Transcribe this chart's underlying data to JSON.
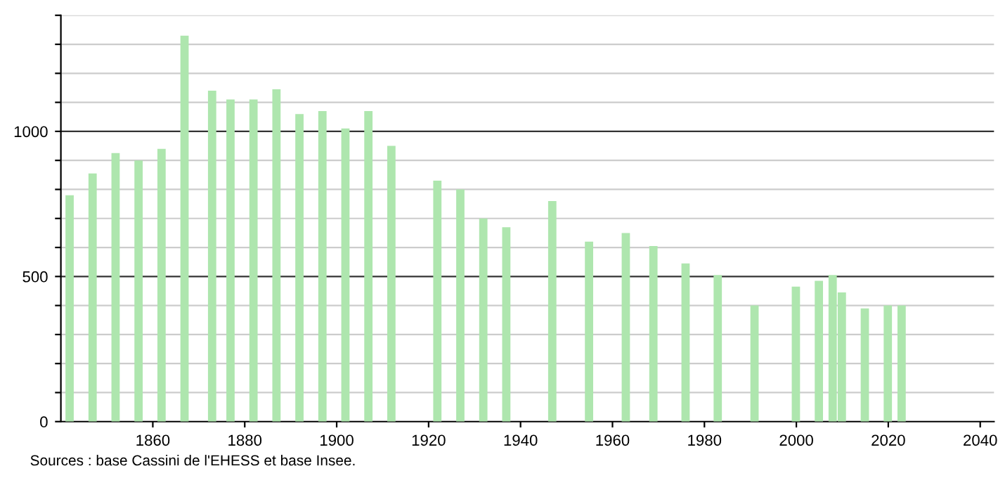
{
  "chart_data": {
    "type": "bar",
    "x": [
      1841,
      1846,
      1851,
      1856,
      1861,
      1866,
      1872,
      1876,
      1881,
      1886,
      1891,
      1896,
      1901,
      1906,
      1911,
      1921,
      1926,
      1931,
      1936,
      1946,
      1954,
      1962,
      1968,
      1975,
      1982,
      1990,
      1999,
      2004,
      2007,
      2009,
      2014,
      2019,
      2022
    ],
    "values": [
      780,
      855,
      925,
      900,
      940,
      1330,
      1140,
      1110,
      1110,
      1145,
      1060,
      1070,
      1010,
      1070,
      950,
      830,
      800,
      700,
      670,
      760,
      620,
      650,
      605,
      545,
      505,
      400,
      465,
      485,
      505,
      445,
      390,
      400,
      400
    ],
    "color": "#aee6ae",
    "xlim": [
      1840,
      2043
    ],
    "xticks": [
      1860,
      1880,
      1900,
      1920,
      1940,
      1960,
      1980,
      2000,
      2020,
      2040
    ],
    "ylim": [
      0,
      1400
    ],
    "yticks": [
      0,
      {
        "value": 100,
        "label": null
      },
      {
        "value": 200,
        "label": null
      },
      {
        "value": 300,
        "label": null
      },
      {
        "value": 400,
        "label": null
      },
      500,
      {
        "value": 600,
        "label": null
      },
      {
        "value": 700,
        "label": null
      },
      {
        "value": 800,
        "label": null
      },
      {
        "value": 900,
        "label": null
      },
      1000,
      {
        "value": 1100,
        "label": null
      },
      {
        "value": 1200,
        "label": null
      },
      {
        "value": 1300,
        "label": null
      },
      {
        "value": 1400,
        "label": null
      }
    ],
    "grid": "y",
    "annotations": [
      "Sources : base Cassini de l'EHESS et base Insee."
    ]
  }
}
